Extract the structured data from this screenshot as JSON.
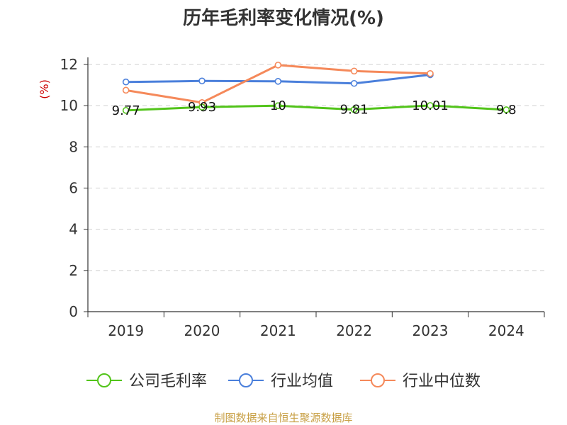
{
  "chart_data": {
    "type": "line",
    "title": "历年毛利率变化情况(%)",
    "ylabel": "(%)",
    "xlabel": "",
    "categories": [
      "2019",
      "2020",
      "2021",
      "2022",
      "2023",
      "2024"
    ],
    "ylim": [
      0,
      12
    ],
    "yticks": [
      0,
      2,
      4,
      6,
      8,
      10,
      12
    ],
    "grid": true,
    "legend_position": "bottom",
    "series": [
      {
        "name": "公司毛利率",
        "color": "#52c41a",
        "values": [
          9.77,
          9.93,
          10,
          9.81,
          10.01,
          9.8
        ],
        "labels": [
          "9.77",
          "9.93",
          "10",
          "9.81",
          "10.01",
          "9.8"
        ]
      },
      {
        "name": "行业均值",
        "color": "#4a7fdb",
        "values": [
          11.15,
          11.2,
          11.18,
          11.08,
          11.5,
          null
        ]
      },
      {
        "name": "行业中位数",
        "color": "#f5895a",
        "values": [
          10.75,
          10.15,
          11.97,
          11.68,
          11.56,
          null
        ]
      }
    ]
  },
  "source": "制图数据来自恒生聚源数据库"
}
